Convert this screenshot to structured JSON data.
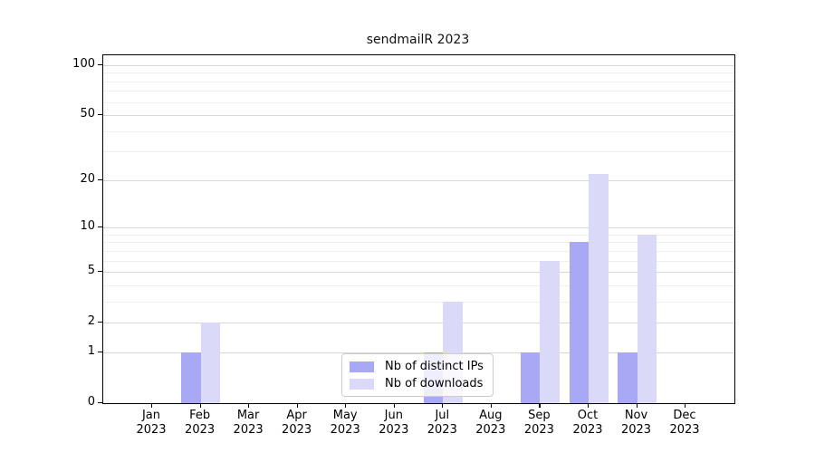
{
  "chart_data": {
    "type": "bar",
    "title": "sendmailR 2023",
    "scale": "log1p",
    "categories": [
      "Jan",
      "Feb",
      "Mar",
      "Apr",
      "May",
      "Jun",
      "Jul",
      "Aug",
      "Sep",
      "Oct",
      "Nov",
      "Dec"
    ],
    "year_label": "2023",
    "series": [
      {
        "name": "Nb of distinct IPs",
        "color": "#a8a8f5",
        "values": [
          0,
          1,
          0,
          0,
          0,
          0,
          1,
          0,
          1,
          8,
          1,
          0
        ]
      },
      {
        "name": "Nb of downloads",
        "color": "#dadaf8",
        "values": [
          0,
          2,
          0,
          0,
          0,
          0,
          3,
          0,
          6,
          22,
          9,
          0
        ]
      }
    ],
    "xlabel": "",
    "ylabel": "",
    "y_ticks": [
      0,
      1,
      2,
      5,
      10,
      20,
      50,
      100
    ],
    "y_minor_gridlines": [
      3,
      4,
      6,
      7,
      8,
      9,
      30,
      40,
      60,
      70,
      80,
      90
    ],
    "ylim": [
      0,
      115
    ],
    "grid": true,
    "legend_position": "bottom-center"
  }
}
